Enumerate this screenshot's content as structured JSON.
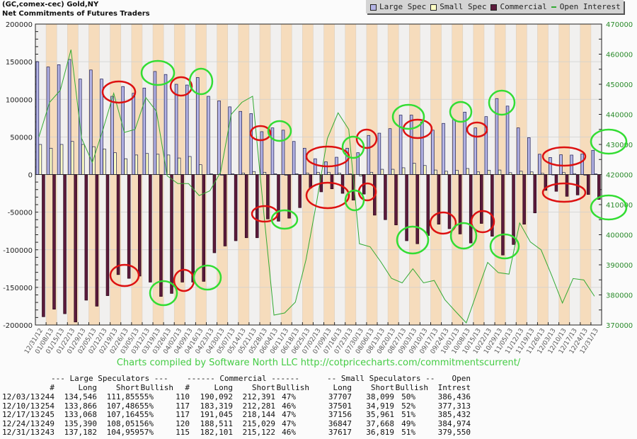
{
  "header": {
    "title": "(GC,comex-cec) Gold,NY",
    "subtitle": "Net Commitments of Futures Traders"
  },
  "legend": {
    "items": [
      {
        "label": "Large Spec",
        "color": "#b4b4e6"
      },
      {
        "label": "Small Spec",
        "color": "#ffffc4"
      },
      {
        "label": "Commercial",
        "color": "#5c1a3c"
      },
      {
        "label": "Open Interest",
        "color": "#33aa33"
      }
    ]
  },
  "credit": "Charts compiled by Software North LLC  http://cotpricecharts.com/commitmentscurrent/",
  "chart_data": {
    "type": "bar",
    "title": "Net Commitments of Futures Traders",
    "categories": [
      "12/31/12",
      "01/08/13",
      "01/15/13",
      "01/22/13",
      "01/29/13",
      "02/05/13",
      "02/12/13",
      "02/19/13",
      "02/26/13",
      "03/05/13",
      "03/12/13",
      "03/19/13",
      "03/26/13",
      "04/02/13",
      "04/09/13",
      "04/16/13",
      "04/23/13",
      "04/30/13",
      "05/07/13",
      "05/14/13",
      "05/21/13",
      "05/28/13",
      "06/04/13",
      "06/11/13",
      "06/18/13",
      "06/25/13",
      "07/02/13",
      "07/09/13",
      "07/16/13",
      "07/23/13",
      "07/30/13",
      "08/06/13",
      "08/13/13",
      "08/20/13",
      "08/27/13",
      "09/03/13",
      "09/10/13",
      "09/17/13",
      "09/24/13",
      "10/01/13",
      "10/08/13",
      "10/15/13",
      "10/22/13",
      "10/29/13",
      "11/05/13",
      "11/12/13",
      "11/19/13",
      "11/26/13",
      "12/03/13",
      "12/10/13",
      "12/17/13",
      "12/24/13",
      "12/31/13"
    ],
    "series": [
      {
        "name": "Large Spec",
        "axis": "left",
        "type": "bar",
        "color": "#b4b4e6",
        "values": [
          150000,
          143000,
          146000,
          153000,
          127000,
          139000,
          127000,
          104000,
          117000,
          108000,
          115000,
          137000,
          133000,
          120000,
          119000,
          129000,
          104000,
          98000,
          90000,
          84000,
          81000,
          57000,
          62000,
          59000,
          44000,
          35000,
          21000,
          17000,
          23000,
          35000,
          29000,
          52000,
          55000,
          61000,
          79000,
          79000,
          70000,
          59000,
          68000,
          73000,
          83000,
          62000,
          77000,
          101000,
          91000,
          62000,
          49000,
          27000,
          22691,
          26380,
          25904,
          27339,
          32223
        ]
      },
      {
        "name": "Small Spec",
        "axis": "left",
        "type": "bar",
        "color": "#ffffc4",
        "values": [
          40000,
          35000,
          40000,
          44000,
          40000,
          37000,
          34000,
          29000,
          21000,
          26000,
          28000,
          27000,
          26000,
          22000,
          24000,
          13000,
          1000,
          -1000,
          1000,
          2000,
          4000,
          3000,
          1000,
          -1000,
          1000,
          2000,
          3000,
          3000,
          2000,
          1000,
          -2000,
          3000,
          7000,
          7000,
          9000,
          15000,
          12000,
          6000,
          4400,
          5700,
          8000,
          3500,
          5700,
          6000,
          2500,
          4400,
          3500,
          1600,
          -392,
          2582,
          1195,
          -821,
          798
        ]
      },
      {
        "name": "Commercial",
        "axis": "left",
        "type": "bar",
        "color": "#5c1a3c",
        "values": [
          -189000,
          -179000,
          -185000,
          -196000,
          -167000,
          -175000,
          -161000,
          -133000,
          -138000,
          -135000,
          -143000,
          -162000,
          -158000,
          -143000,
          -143000,
          -142000,
          -104000,
          -95000,
          -88000,
          -84000,
          -84000,
          -59000,
          -62000,
          -58000,
          -44000,
          -18000,
          -23000,
          -19000,
          -25000,
          -34000,
          -26000,
          -54000,
          -60000,
          -67000,
          -88000,
          -92000,
          -81000,
          -66000,
          -72000,
          -79000,
          -91000,
          -65000,
          -82000,
          -107000,
          -93000,
          -66000,
          -51000,
          -21000,
          -22299,
          -28962,
          -27099,
          -26518,
          -33021
        ]
      },
      {
        "name": "Open Interest",
        "axis": "right",
        "type": "line",
        "color": "#33aa33",
        "values": [
          432500,
          444000,
          448000,
          461500,
          432000,
          424000,
          435000,
          447000,
          434000,
          435000,
          445600,
          441000,
          419600,
          417000,
          417000,
          413000,
          414600,
          420700,
          440000,
          444000,
          446000,
          409000,
          373300,
          374000,
          377600,
          391700,
          411000,
          432000,
          440500,
          435000,
          397000,
          396000,
          391000,
          385500,
          384000,
          388700,
          384000,
          384800,
          378400,
          374500,
          370700,
          380800,
          390800,
          387400,
          386900,
          403900,
          397600,
          395000,
          386436,
          377313,
          385432,
          384974,
          379550
        ]
      }
    ],
    "left_axis": {
      "ylim": [
        -200000,
        200000
      ],
      "ticks": [
        "200000",
        "150000",
        "100000",
        "50000",
        "0",
        "-50000",
        "-100000",
        "-150000",
        "-200000"
      ]
    },
    "right_axis": {
      "ylim": [
        370000,
        470000
      ],
      "ticks": [
        "470000",
        "460000",
        "450000",
        "440000",
        "430000",
        "420000",
        "410000",
        "400000",
        "390000",
        "380000",
        "370000"
      ]
    },
    "grid": true,
    "legend_position": "top-right",
    "annotations": "red and green hand-drawn ellipses highlighting bars"
  },
  "table": {
    "group_headers": {
      "large": "--- Large Speculators ---",
      "commercial": "------ Commercial ------",
      "small": "-- Small Speculators --",
      "open": "Open"
    },
    "col_headers": {
      "ls_count": "#",
      "ls_long": "Long",
      "ls_short": "Short",
      "ls_bull": "Bullish",
      "c_count": "#",
      "c_long": "Long",
      "c_short": "Short",
      "c_bull": "Bullish",
      "s_long": "Long",
      "s_short": "Short",
      "s_bull": "Bullish",
      "oi": "Intrest"
    },
    "rows": [
      {
        "date": "12/03/13",
        "ls_count": "244",
        "ls_long": "134,546",
        "ls_short": "111,855",
        "ls_bull": "55%",
        "c_count": "110",
        "c_long": "190,092",
        "c_short": "212,391",
        "c_bull": "47%",
        "s_long": "37707",
        "s_short": "38,099",
        "s_bull": "50%",
        "oi": "386,436"
      },
      {
        "date": "12/10/13",
        "ls_count": "254",
        "ls_long": "133,866",
        "ls_short": "107,486",
        "ls_bull": "55%",
        "c_count": "117",
        "c_long": "183,319",
        "c_short": "212,281",
        "c_bull": "46%",
        "s_long": "37501",
        "s_short": "34,919",
        "s_bull": "52%",
        "oi": "377,313"
      },
      {
        "date": "12/17/13",
        "ls_count": "245",
        "ls_long": "133,068",
        "ls_short": "107,164",
        "ls_bull": "55%",
        "c_count": "117",
        "c_long": "191,045",
        "c_short": "218,144",
        "c_bull": "47%",
        "s_long": "37156",
        "s_short": "35,961",
        "s_bull": "51%",
        "oi": "385,432"
      },
      {
        "date": "12/24/13",
        "ls_count": "249",
        "ls_long": "135,390",
        "ls_short": "108,051",
        "ls_bull": "56%",
        "c_count": "120",
        "c_long": "188,511",
        "c_short": "215,029",
        "c_bull": "47%",
        "s_long": "36847",
        "s_short": "37,668",
        "s_bull": "49%",
        "oi": "384,974"
      },
      {
        "date": "12/31/13",
        "ls_count": "243",
        "ls_long": "137,182",
        "ls_short": "104,959",
        "ls_bull": "57%",
        "c_count": "115",
        "c_long": "182,101",
        "c_short": "215,122",
        "c_bull": "46%",
        "s_long": "37617",
        "s_short": "36,819",
        "s_bull": "51%",
        "oi": "379,550"
      }
    ]
  }
}
